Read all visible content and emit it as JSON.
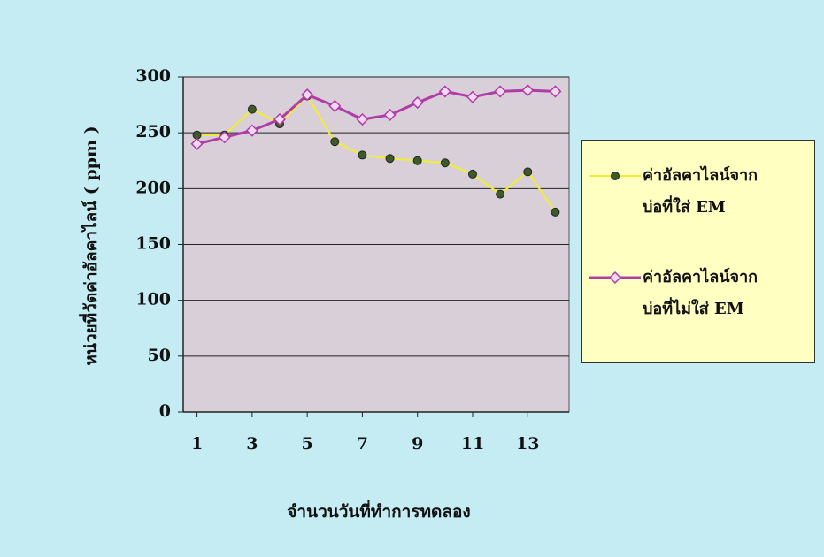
{
  "chart_data": {
    "type": "line",
    "x_label": "จำนวนวันที่ทำการทดลอง",
    "y_label": "หน่วยที่วัดค่าอัลคาไลน์ ( ppm )",
    "x": [
      1,
      2,
      3,
      4,
      5,
      6,
      7,
      8,
      9,
      10,
      11,
      12,
      13,
      14
    ],
    "xlim": [
      0.5,
      14.5
    ],
    "xticks": [
      1,
      3,
      5,
      7,
      9,
      11,
      13
    ],
    "ylim": [
      0,
      300
    ],
    "yticks": [
      0,
      50,
      100,
      150,
      200,
      250,
      300
    ],
    "grid": true,
    "series": [
      {
        "name": "ค่าอัลคาไลน์จาก\nบ่อที่ใส่ EM",
        "color": "#f0f030",
        "values": [
          248,
          248,
          271,
          258,
          283,
          242,
          230,
          227,
          225,
          223,
          213,
          195,
          215,
          179
        ]
      },
      {
        "name": "ค่าอัลคาไลน์จาก\nบ่อที่ไม่ใส่ EM",
        "color": "#b03ca8",
        "values": [
          240,
          246,
          252,
          262,
          284,
          274,
          262,
          266,
          277,
          287,
          282,
          287,
          288,
          287
        ]
      }
    ]
  }
}
